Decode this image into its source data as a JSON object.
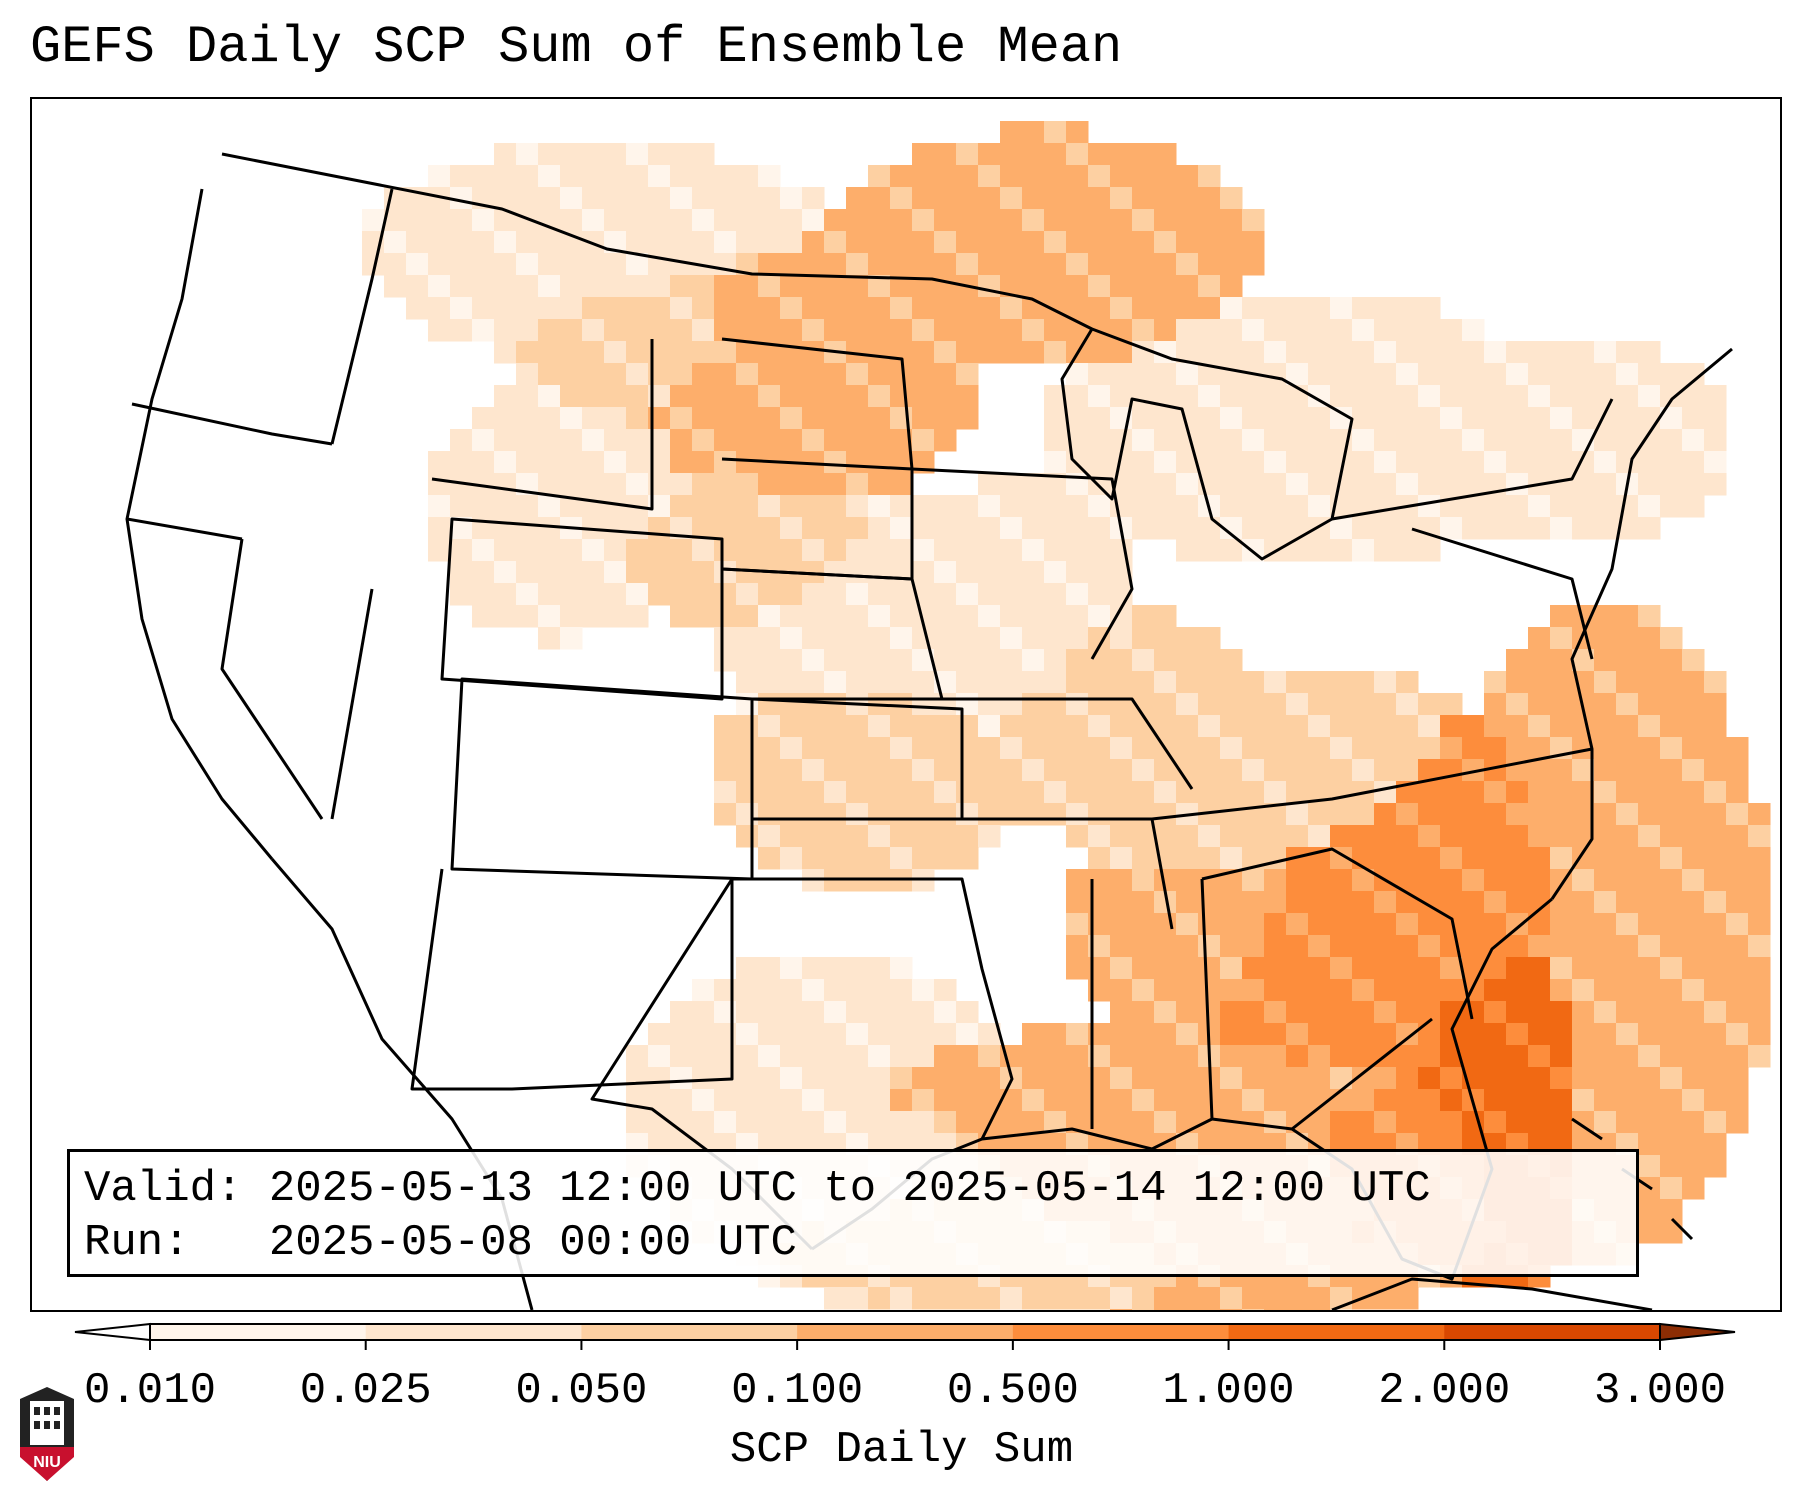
{
  "title": "GEFS Daily SCP Sum of Ensemble Mean",
  "info": {
    "valid_label": "Valid:",
    "valid_value": "2025-05-13 12:00 UTC to 2025-05-14 12:00 UTC",
    "run_label": "Run:",
    "run_value": "2025-05-08 00:00 UTC"
  },
  "colorbar": {
    "label": "SCP Daily Sum",
    "ticks": [
      "0.010",
      "0.025",
      "0.050",
      "0.100",
      "0.500",
      "1.000",
      "2.000",
      "3.000"
    ],
    "colors": [
      "#fff5eb",
      "#fee6ce",
      "#fdd0a2",
      "#fdae6b",
      "#fd8d3c",
      "#f16913",
      "#d94801",
      "#8c2d04"
    ],
    "extend": "both"
  },
  "logo": {
    "text": "NIU",
    "colors": {
      "red": "#c8102e",
      "dark": "#222222"
    }
  },
  "map": {
    "projection": "Lambert conformal over contiguous United States",
    "colors": {
      "outline": "#000000",
      "water": "#ffffff"
    }
  }
}
